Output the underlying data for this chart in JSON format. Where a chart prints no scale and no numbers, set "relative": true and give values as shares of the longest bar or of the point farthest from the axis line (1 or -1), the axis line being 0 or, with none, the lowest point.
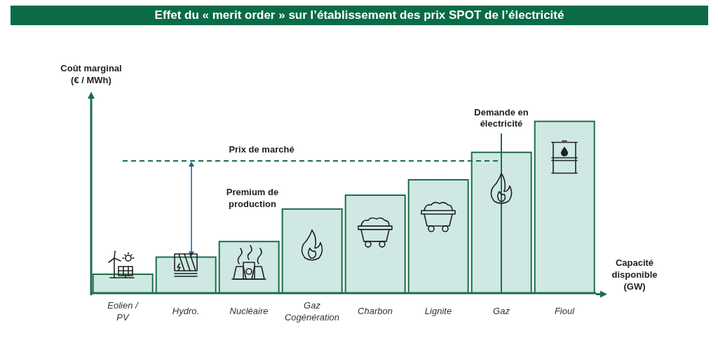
{
  "chart_data": {
    "type": "bar",
    "title": "Effet du « merit order » sur l’établissement des prix SPOT de l’électricité",
    "xlabel": "Capacité disponible (GW)",
    "ylabel": "Coût marginal (€ / MWh)",
    "categories": [
      "Eolien / PV",
      "Hydro.",
      "Nucléaire",
      "Gaz Cogénération",
      "Charbon",
      "Lignite",
      "Gaz",
      "Fioul"
    ],
    "values": [
      0.11,
      0.21,
      0.3,
      0.49,
      0.57,
      0.66,
      0.82,
      1
    ],
    "color": "#cfe8e3",
    "relative": true,
    "ref_lines": [
      {
        "axis": "y",
        "value": 0.77,
        "label": "Prix de marché",
        "line_style": "dashed",
        "color": "#1b6e4a"
      },
      {
        "axis": "x",
        "value": "Gaz",
        "label": "Demande en électricité",
        "color": "#1b6e4a"
      }
    ],
    "annotations": [
      "Premium de production"
    ]
  }
}
